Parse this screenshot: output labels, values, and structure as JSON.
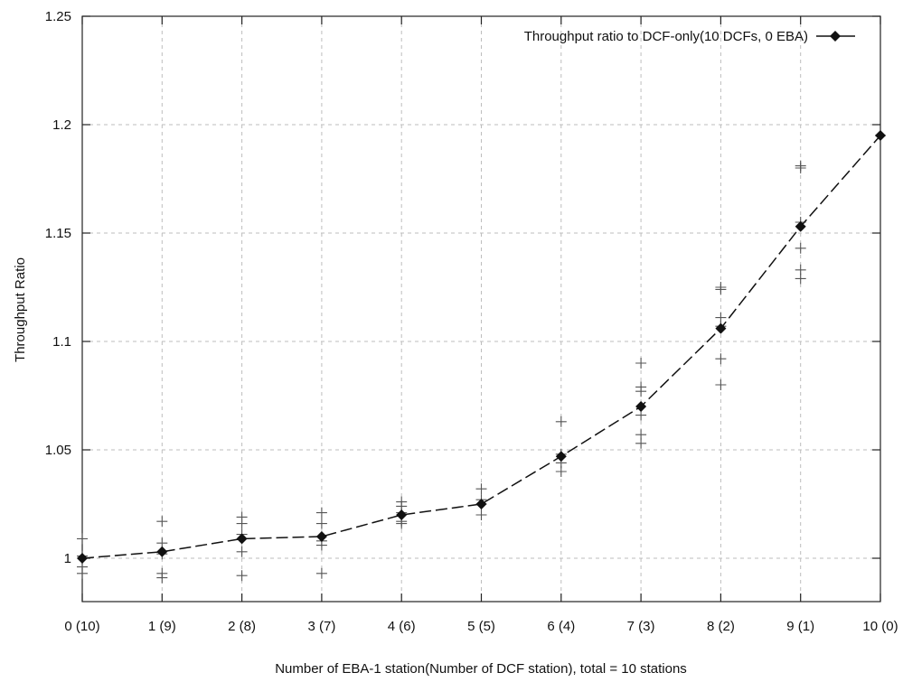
{
  "chart_data": {
    "type": "line",
    "title": "",
    "xlabel": "Number of EBA-1 station(Number of DCF station), total = 10 stations",
    "ylabel": "Throughput Ratio",
    "categories": [
      "0 (10)",
      "1 (9)",
      "2 (8)",
      "3 (7)",
      "4 (6)",
      "5 (5)",
      "6 (4)",
      "7 (3)",
      "8 (2)",
      "9 (1)",
      "10 (0)"
    ],
    "yticks": [
      "1",
      "1.05",
      "1.1",
      "1.15",
      "1.2",
      "1.25"
    ],
    "ylim": [
      0.98,
      1.25
    ],
    "grid": true,
    "legend_position": "top-right",
    "series": [
      {
        "name": "Throughput ratio to DCF-only(10 DCFs, 0 EBA)",
        "values": [
          1.0,
          1.003,
          1.009,
          1.01,
          1.02,
          1.025,
          1.047,
          1.07,
          1.106,
          1.153,
          1.195
        ],
        "line_style": "dashed",
        "marker": "diamond",
        "color": "#111111"
      }
    ],
    "samples": [
      {
        "x": 0,
        "y": [
          0.993,
          0.996,
          1.001,
          1.009
        ]
      },
      {
        "x": 1,
        "y": [
          0.991,
          0.993,
          1.002,
          1.007,
          1.017
        ]
      },
      {
        "x": 2,
        "y": [
          0.992,
          1.003,
          1.011,
          1.016,
          1.019
        ]
      },
      {
        "x": 3,
        "y": [
          0.993,
          1.006,
          1.008,
          1.016,
          1.021
        ]
      },
      {
        "x": 4,
        "y": [
          1.016,
          1.017,
          1.021,
          1.024,
          1.026
        ]
      },
      {
        "x": 5,
        "y": [
          1.02,
          1.025,
          1.027,
          1.032
        ]
      },
      {
        "x": 6,
        "y": [
          1.04,
          1.044,
          1.048,
          1.063
        ]
      },
      {
        "x": 7,
        "y": [
          1.053,
          1.057,
          1.066,
          1.077,
          1.079,
          1.09
        ]
      },
      {
        "x": 8,
        "y": [
          1.08,
          1.092,
          1.107,
          1.111,
          1.124,
          1.125
        ]
      },
      {
        "x": 9,
        "y": [
          1.129,
          1.133,
          1.143,
          1.155,
          1.18,
          1.181
        ]
      },
      {
        "x": 10,
        "y": [
          1.195
        ]
      }
    ],
    "sample_marker": "plus",
    "colors": {
      "axis": "#222222",
      "grid": "#bdbdbd",
      "series": "#111111"
    }
  }
}
